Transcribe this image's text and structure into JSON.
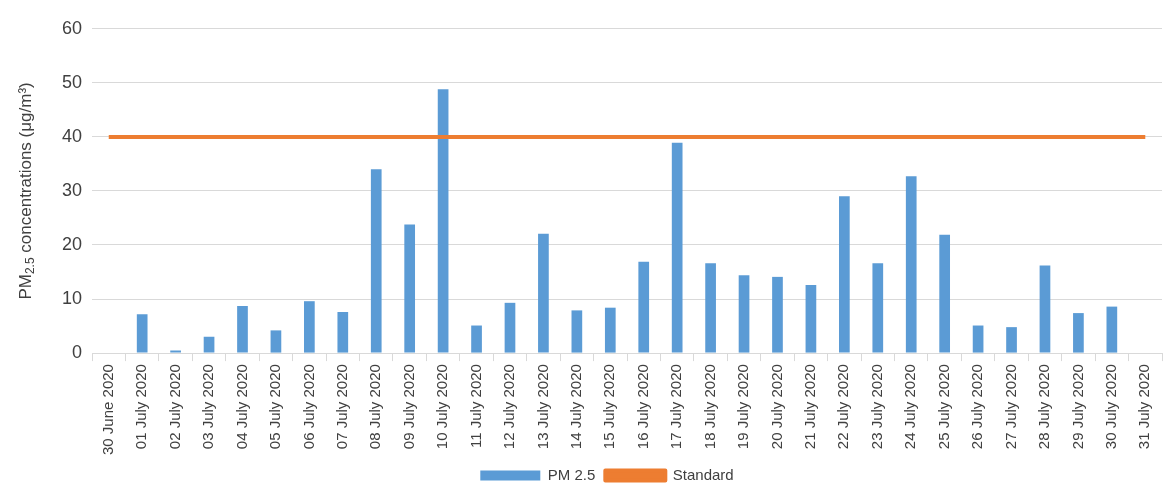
{
  "chart_data": {
    "type": "bar",
    "ylabel": "PM$_{2.5}$ concentrations (μg/m³)",
    "categories": [
      "30 June 2020",
      "01 July 2020",
      "02 July 2020",
      "03 July 2020",
      "04 July 2020",
      "05 July 2020",
      "06 July 2020",
      "07 July 2020",
      "08 July 2020",
      "09 July 2020",
      "10 July 2020",
      "11 July 2020",
      "12 July 2020",
      "13 July 2020",
      "14 July 2020",
      "15 July 2020",
      "16 July 2020",
      "17 July 2020",
      "18 July 2020",
      "19 July 2020",
      "20 July 2020",
      "21 July 2020",
      "22 July 2020",
      "23 July 2020",
      "24 July 2020",
      "25 July 2020",
      "26 July 2020",
      "27 July 2020",
      "28 July 2020",
      "29 July 2020",
      "30 July 2020",
      "31 July 2020"
    ],
    "series": [
      {
        "name": "PM 2.5",
        "color": "#5b9bd5",
        "values": [
          null,
          7.2,
          0.5,
          3,
          8.7,
          4.2,
          9.6,
          7.6,
          34,
          23.8,
          48.8,
          5.1,
          9.3,
          22.1,
          7.9,
          8.4,
          16.9,
          38.9,
          16.6,
          14.4,
          14.1,
          12.6,
          29,
          16.6,
          32.7,
          21.9,
          5.1,
          4.8,
          16.2,
          7.4,
          8.6,
          null
        ]
      },
      {
        "name": "Standard",
        "type": "line",
        "color": "#ed7d31",
        "marker": "none",
        "values": [
          40,
          40,
          40,
          40,
          40,
          40,
          40,
          40,
          40,
          40,
          40,
          40,
          40,
          40,
          40,
          40,
          40,
          40,
          40,
          40,
          40,
          40,
          40,
          40,
          40,
          40,
          40,
          40,
          40,
          40,
          40,
          40
        ]
      }
    ],
    "ylim": [
      0,
      60
    ],
    "yticks": [
      0,
      10,
      20,
      30,
      40,
      50,
      60
    ],
    "grid": "y",
    "legend": "bottom"
  }
}
